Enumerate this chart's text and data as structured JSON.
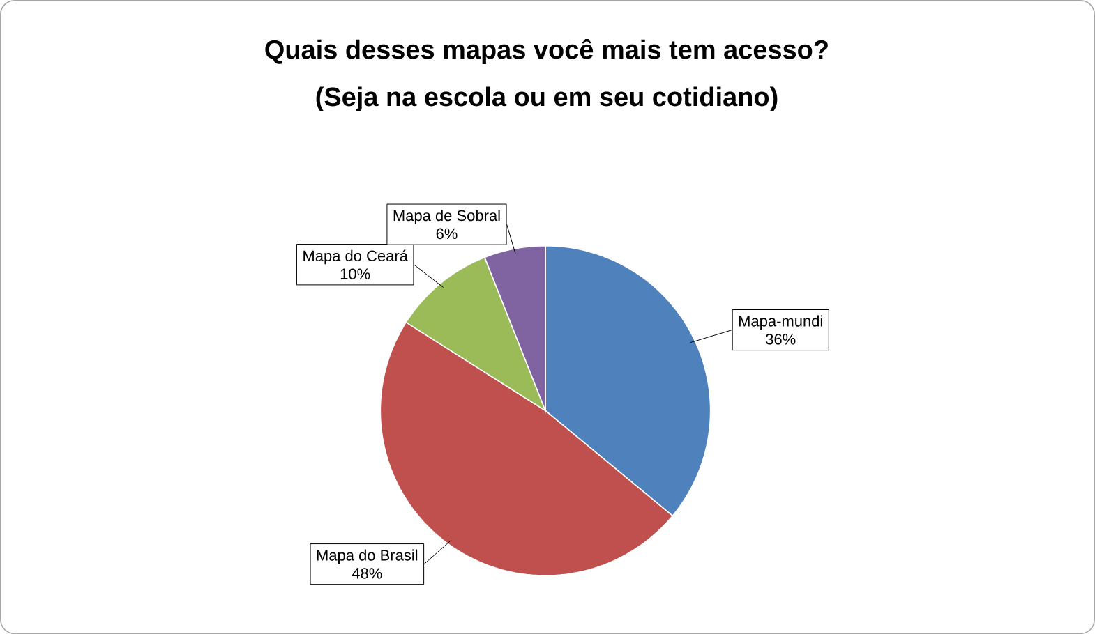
{
  "chart_data": {
    "type": "pie",
    "title": "Quais desses mapas você mais tem acesso?",
    "subtitle": "(Seja na escola ou em seu cotidiano)",
    "categories": [
      "Mapa-mundi",
      "Mapa do Brasil",
      "Mapa do Ceará",
      "Mapa de Sobral"
    ],
    "values": [
      36,
      48,
      10,
      6
    ],
    "value_labels": [
      "36%",
      "48%",
      "10%",
      "6%"
    ],
    "colors": [
      "#4f81bd",
      "#c0504d",
      "#9bbb59",
      "#8064a2"
    ]
  }
}
